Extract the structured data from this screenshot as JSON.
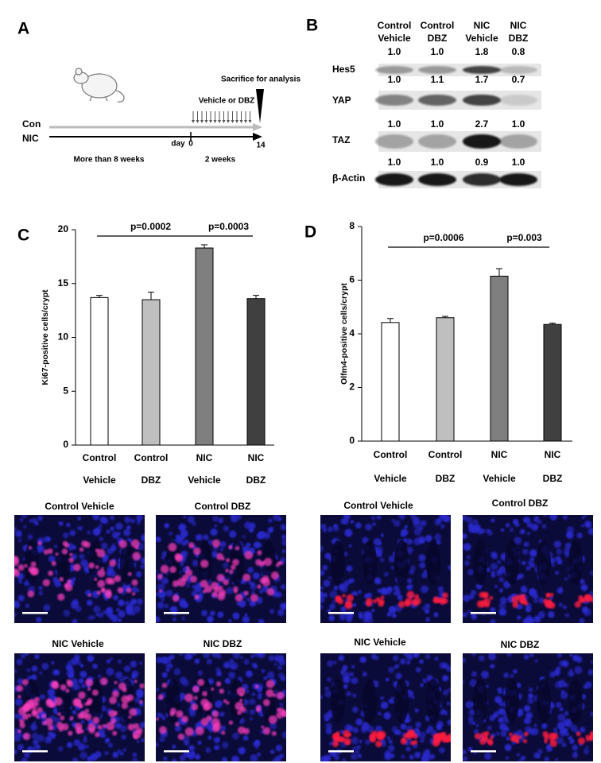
{
  "panel_a": {
    "letter": "A",
    "groups": [
      "Con",
      "NIC"
    ],
    "treatment": "Vehicle or DBZ",
    "endpoint": "Sacrifice for analysis",
    "day_label": "day",
    "day_start": "0",
    "day_end": "14",
    "period_before": "More than 8 weeks",
    "period_treatment": "2 weeks"
  },
  "panel_b": {
    "letter": "B",
    "columns": [
      [
        "Control",
        "Vehicle"
      ],
      [
        "Control",
        "DBZ"
      ],
      [
        "NIC",
        "Vehicle"
      ],
      [
        "NIC",
        "DBZ"
      ]
    ],
    "rows": [
      {
        "label": "Hes5",
        "values": [
          "1.0",
          "1.0",
          "1.8",
          "0.8"
        ]
      },
      {
        "label": "YAP",
        "values": [
          "1.0",
          "1.1",
          "1.7",
          "0.7"
        ]
      },
      {
        "label": "TAZ",
        "values": [
          "1.0",
          "1.0",
          "2.7",
          "1.0"
        ]
      },
      {
        "label": "β-Actin",
        "values": [
          "1.0",
          "1.0",
          "0.9",
          "1.0"
        ]
      }
    ]
  },
  "chart_data": [
    {
      "type": "bar",
      "panel_label": "C",
      "y_label": "Ki67-positive cells/crypt",
      "categories": [
        [
          "Control",
          "Vehicle"
        ],
        [
          "Control",
          "DBZ"
        ],
        [
          "NIC",
          "Vehicle"
        ],
        [
          "NIC",
          "DBZ"
        ]
      ],
      "values": [
        13.7,
        13.5,
        18.3,
        13.6
      ],
      "errors": [
        0.2,
        0.7,
        0.3,
        0.3
      ],
      "colors": [
        "#ffffff",
        "#bfbfbf",
        "#7f7f7f",
        "#404040"
      ],
      "ylim": [
        0,
        20
      ],
      "yticks": [
        0,
        5,
        10,
        15,
        20
      ],
      "annotations": [
        "p=0.0002",
        "p=0.0003"
      ]
    },
    {
      "type": "bar",
      "panel_label": "D",
      "y_label": "Olfm4-positive cells/crypt",
      "categories": [
        [
          "Control",
          "Vehicle"
        ],
        [
          "Control",
          "DBZ"
        ],
        [
          "NIC",
          "Vehicle"
        ],
        [
          "NIC",
          "DBZ"
        ]
      ],
      "values": [
        4.42,
        4.6,
        6.15,
        4.35
      ],
      "errors": [
        0.15,
        0.05,
        0.28,
        0.05
      ],
      "colors": [
        "#ffffff",
        "#bfbfbf",
        "#7f7f7f",
        "#404040"
      ],
      "ylim": [
        0,
        8
      ],
      "yticks": [
        0,
        2,
        4,
        6,
        8
      ],
      "annotations": [
        "p=0.0006",
        "p=0.003"
      ]
    }
  ],
  "image_panels": {
    "ki67": [
      "Control Vehicle",
      "Control DBZ",
      "NIC Vehicle",
      "NIC DBZ"
    ],
    "olfm4": [
      "Control Vehicle",
      "Control DBZ",
      "NIC Vehicle",
      "NIC DBZ"
    ]
  }
}
